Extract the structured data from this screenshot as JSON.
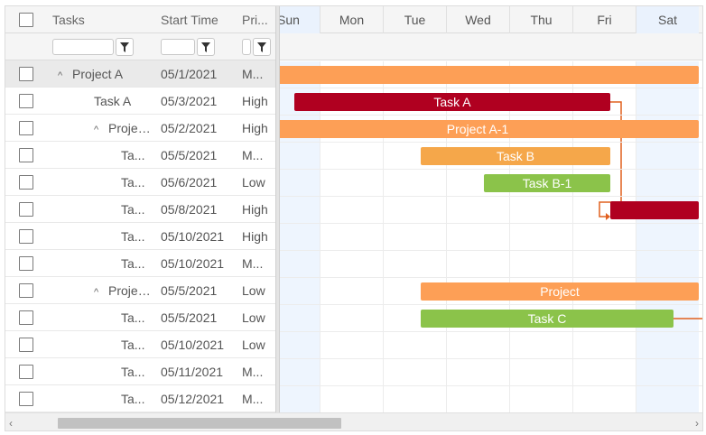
{
  "grid": {
    "headers": {
      "tasks": "Tasks",
      "start": "Start Time",
      "priority": "Pri..."
    },
    "filters": {
      "tasks_value": "",
      "start_value": "",
      "priority_value": ""
    },
    "rows": [
      {
        "indent": 0,
        "expand": "^",
        "name": "Project A",
        "start": "05/1/2021",
        "priority": "M...",
        "selected": true
      },
      {
        "indent": 1,
        "expand": "",
        "name": "Task A",
        "start": "05/3/2021",
        "priority": "High",
        "selected": false
      },
      {
        "indent": 1,
        "expand": "^",
        "name": "Project ...",
        "start": "05/2/2021",
        "priority": "High",
        "selected": false
      },
      {
        "indent": 2,
        "expand": "",
        "name": "Ta...",
        "start": "05/5/2021",
        "priority": "M...",
        "selected": false
      },
      {
        "indent": 2,
        "expand": "",
        "name": "Ta...",
        "start": "05/6/2021",
        "priority": "Low",
        "selected": false
      },
      {
        "indent": 2,
        "expand": "",
        "name": "Ta...",
        "start": "05/8/2021",
        "priority": "High",
        "selected": false
      },
      {
        "indent": 2,
        "expand": "",
        "name": "Ta...",
        "start": "05/10/2021",
        "priority": "High",
        "selected": false
      },
      {
        "indent": 2,
        "expand": "",
        "name": "Ta...",
        "start": "05/10/2021",
        "priority": "M...",
        "selected": false
      },
      {
        "indent": 1,
        "expand": "^",
        "name": "Project ...",
        "start": "05/5/2021",
        "priority": "Low",
        "selected": false
      },
      {
        "indent": 2,
        "expand": "",
        "name": "Ta...",
        "start": "05/5/2021",
        "priority": "Low",
        "selected": false
      },
      {
        "indent": 2,
        "expand": "",
        "name": "Ta...",
        "start": "05/10/2021",
        "priority": "Low",
        "selected": false
      },
      {
        "indent": 2,
        "expand": "",
        "name": "Ta...",
        "start": "05/11/2021",
        "priority": "M...",
        "selected": false
      },
      {
        "indent": 2,
        "expand": "",
        "name": "Ta...",
        "start": "05/12/2021",
        "priority": "M...",
        "selected": false
      }
    ]
  },
  "timeline": {
    "days": [
      {
        "label": "Sun",
        "weekend": true
      },
      {
        "label": "Mon",
        "weekend": false
      },
      {
        "label": "Tue",
        "weekend": false
      },
      {
        "label": "Wed",
        "weekend": false
      },
      {
        "label": "Thu",
        "weekend": false
      },
      {
        "label": "Fri",
        "weekend": false
      },
      {
        "label": "Sat",
        "weekend": true
      }
    ],
    "bars": [
      {
        "row": 0,
        "label": "",
        "start_day": 0,
        "end_day": 7,
        "color": "#fd9f56"
      },
      {
        "row": 1,
        "label": "Task A",
        "start_day": 0.6,
        "end_day": 5.6,
        "color": "#b00020"
      },
      {
        "row": 2,
        "label": "Project A-1",
        "start_day": 0,
        "end_day": 7,
        "color": "#fd9f56"
      },
      {
        "row": 3,
        "label": "Task B",
        "start_day": 2.6,
        "end_day": 5.6,
        "color": "#f5a74a"
      },
      {
        "row": 4,
        "label": "Task B-1",
        "start_day": 3.6,
        "end_day": 5.6,
        "color": "#8bc34a"
      },
      {
        "row": 5,
        "label": "",
        "start_day": 5.6,
        "end_day": 7,
        "color": "#b00020"
      },
      {
        "row": 8,
        "label": "Project",
        "start_day": 2.6,
        "end_day": 7,
        "color": "#fd9f56"
      },
      {
        "row": 9,
        "label": "Task C",
        "start_day": 2.6,
        "end_day": 6.6,
        "color": "#8bc34a"
      }
    ],
    "dependency_color": "#e0601f"
  },
  "scrollbar": {
    "left_arrow": "‹",
    "right_arrow": "›"
  }
}
